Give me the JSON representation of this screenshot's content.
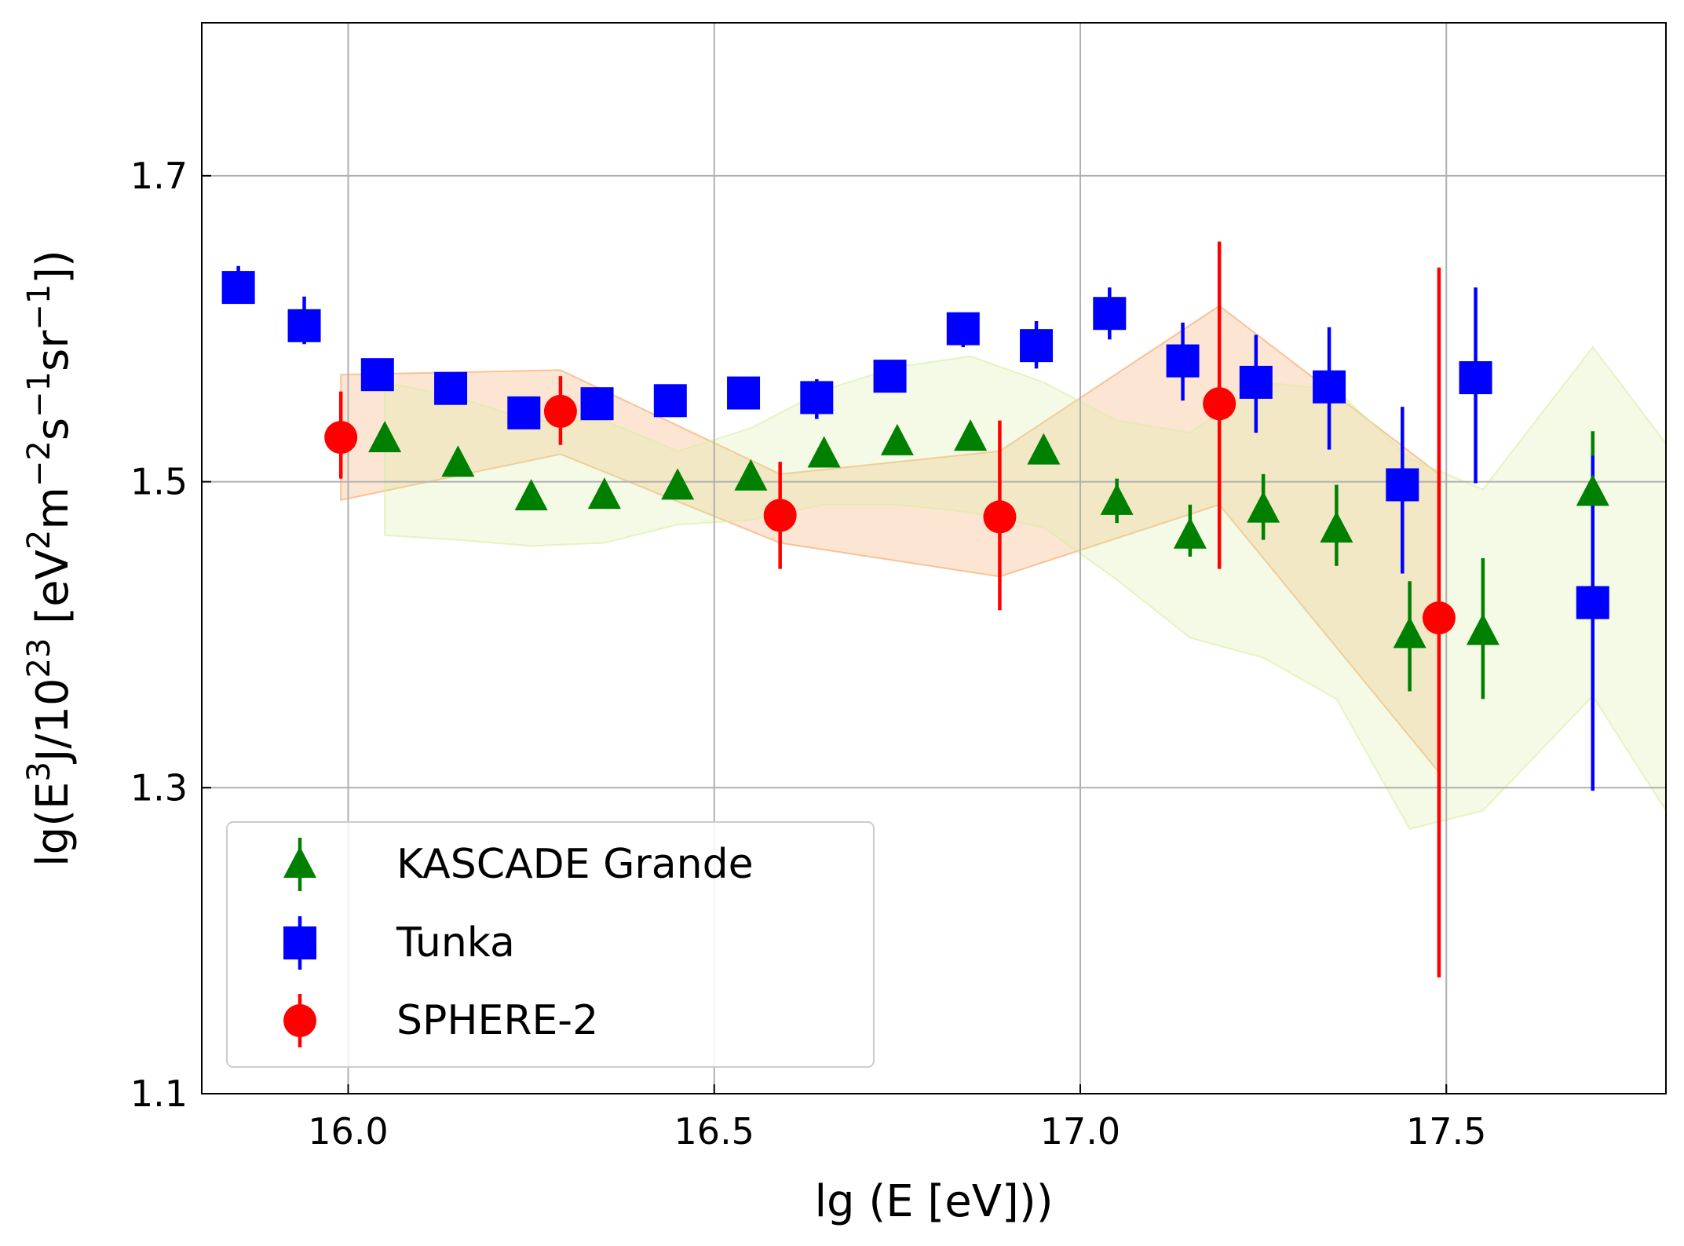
{
  "chart_data": {
    "type": "scatter",
    "title": "",
    "xlabel": "lg (E [eV]))",
    "ylabel_parts": [
      "lg(E",
      "3",
      "J/10",
      "23",
      " [eV",
      "2",
      "m",
      "−2",
      "s",
      "−1",
      "sr",
      "−1",
      "])"
    ],
    "xlim": [
      15.8,
      17.8
    ],
    "ylim": [
      1.1,
      1.8
    ],
    "xticks": [
      16.0,
      16.5,
      17.0,
      17.5
    ],
    "xtick_labels": [
      "16.0",
      "16.5",
      "17.0",
      "17.5"
    ],
    "yticks": [
      1.1,
      1.3,
      1.5,
      1.7
    ],
    "ytick_labels": [
      "1.1",
      "1.3",
      "1.5",
      "1.7"
    ],
    "grid": true,
    "legend_position": "lower-left",
    "series": [
      {
        "name": "KASCADE Grande",
        "marker": "triangle",
        "color": "#008000",
        "points": [
          {
            "x": 16.05,
            "y": 1.528,
            "lo": 1.528,
            "hi": 1.528
          },
          {
            "x": 16.15,
            "y": 1.512,
            "lo": 1.512,
            "hi": 1.512
          },
          {
            "x": 16.25,
            "y": 1.49,
            "lo": 1.49,
            "hi": 1.49
          },
          {
            "x": 16.35,
            "y": 1.491,
            "lo": 1.491,
            "hi": 1.491
          },
          {
            "x": 16.45,
            "y": 1.497,
            "lo": 1.497,
            "hi": 1.497
          },
          {
            "x": 16.55,
            "y": 1.503,
            "lo": 1.503,
            "hi": 1.503
          },
          {
            "x": 16.65,
            "y": 1.518,
            "lo": 1.518,
            "hi": 1.518
          },
          {
            "x": 16.75,
            "y": 1.526,
            "lo": 1.526,
            "hi": 1.526
          },
          {
            "x": 16.85,
            "y": 1.529,
            "lo": 1.529,
            "hi": 1.529
          },
          {
            "x": 16.95,
            "y": 1.52,
            "lo": 1.52,
            "hi": 1.52
          },
          {
            "x": 17.05,
            "y": 1.487,
            "lo": 1.473,
            "hi": 1.502
          },
          {
            "x": 17.15,
            "y": 1.465,
            "lo": 1.451,
            "hi": 1.485
          },
          {
            "x": 17.25,
            "y": 1.482,
            "lo": 1.462,
            "hi": 1.505
          },
          {
            "x": 17.35,
            "y": 1.469,
            "lo": 1.445,
            "hi": 1.498
          },
          {
            "x": 17.45,
            "y": 1.4,
            "lo": 1.363,
            "hi": 1.435
          },
          {
            "x": 17.55,
            "y": 1.402,
            "lo": 1.358,
            "hi": 1.45
          },
          {
            "x": 17.7,
            "y": 1.493,
            "lo": 1.493,
            "hi": 1.533
          }
        ]
      },
      {
        "name": "Tunka",
        "marker": "square",
        "color": "#0000ff",
        "points": [
          {
            "x": 15.85,
            "y": 1.627,
            "lo": 1.622,
            "hi": 1.641
          },
          {
            "x": 15.94,
            "y": 1.602,
            "lo": 1.59,
            "hi": 1.621
          },
          {
            "x": 16.04,
            "y": 1.57,
            "lo": 1.566,
            "hi": 1.575
          },
          {
            "x": 16.14,
            "y": 1.561,
            "lo": 1.558,
            "hi": 1.565
          },
          {
            "x": 16.24,
            "y": 1.545,
            "lo": 1.542,
            "hi": 1.549
          },
          {
            "x": 16.34,
            "y": 1.551,
            "lo": 1.548,
            "hi": 1.555
          },
          {
            "x": 16.44,
            "y": 1.553,
            "lo": 1.55,
            "hi": 1.557
          },
          {
            "x": 16.54,
            "y": 1.558,
            "lo": 1.548,
            "hi": 1.568
          },
          {
            "x": 16.64,
            "y": 1.555,
            "lo": 1.541,
            "hi": 1.567
          },
          {
            "x": 16.74,
            "y": 1.569,
            "lo": 1.565,
            "hi": 1.574
          },
          {
            "x": 16.84,
            "y": 1.6,
            "lo": 1.588,
            "hi": 1.61
          },
          {
            "x": 16.94,
            "y": 1.589,
            "lo": 1.574,
            "hi": 1.605
          },
          {
            "x": 17.04,
            "y": 1.61,
            "lo": 1.593,
            "hi": 1.627
          },
          {
            "x": 17.14,
            "y": 1.579,
            "lo": 1.553,
            "hi": 1.604
          },
          {
            "x": 17.24,
            "y": 1.565,
            "lo": 1.532,
            "hi": 1.596
          },
          {
            "x": 17.34,
            "y": 1.562,
            "lo": 1.521,
            "hi": 1.601
          },
          {
            "x": 17.44,
            "y": 1.498,
            "lo": 1.44,
            "hi": 1.549
          },
          {
            "x": 17.54,
            "y": 1.568,
            "lo": 1.499,
            "hi": 1.627
          },
          {
            "x": 17.7,
            "y": 1.421,
            "lo": 1.298,
            "hi": 1.517
          }
        ]
      },
      {
        "name": "SPHERE-2",
        "marker": "circle",
        "color": "#ff0000",
        "points": [
          {
            "x": 15.99,
            "y": 1.529,
            "lo": 1.502,
            "hi": 1.559
          },
          {
            "x": 16.29,
            "y": 1.546,
            "lo": 1.524,
            "hi": 1.569
          },
          {
            "x": 16.59,
            "y": 1.478,
            "lo": 1.443,
            "hi": 1.513
          },
          {
            "x": 16.89,
            "y": 1.477,
            "lo": 1.416,
            "hi": 1.54
          },
          {
            "x": 17.19,
            "y": 1.551,
            "lo": 1.443,
            "hi": 1.657
          },
          {
            "x": 17.49,
            "y": 1.411,
            "lo": 1.176,
            "hi": 1.64
          }
        ]
      }
    ],
    "bands": [
      {
        "series": "SPHERE-2",
        "color": "#f4a460",
        "x": [
          15.99,
          16.29,
          16.59,
          16.89,
          17.19,
          17.49
        ],
        "upper": [
          1.57,
          1.573,
          1.505,
          1.52,
          1.615,
          1.505
        ],
        "lower": [
          1.488,
          1.518,
          1.46,
          1.438,
          1.485,
          1.31
        ]
      },
      {
        "series": "KASCADE Grande",
        "color": "#d8eca0",
        "x": [
          16.05,
          16.15,
          16.25,
          16.35,
          16.45,
          16.55,
          16.65,
          16.75,
          16.85,
          16.95,
          17.05,
          17.15,
          17.25,
          17.35,
          17.45,
          17.55,
          17.7,
          17.8
        ],
        "upper": [
          1.565,
          1.555,
          1.54,
          1.54,
          1.52,
          1.535,
          1.56,
          1.575,
          1.582,
          1.565,
          1.54,
          1.532,
          1.565,
          1.56,
          1.515,
          1.495,
          1.588,
          1.525
        ],
        "lower": [
          1.465,
          1.462,
          1.458,
          1.46,
          1.472,
          1.475,
          1.485,
          1.485,
          1.48,
          1.47,
          1.436,
          1.398,
          1.385,
          1.358,
          1.273,
          1.285,
          1.36,
          1.285
        ]
      }
    ]
  }
}
